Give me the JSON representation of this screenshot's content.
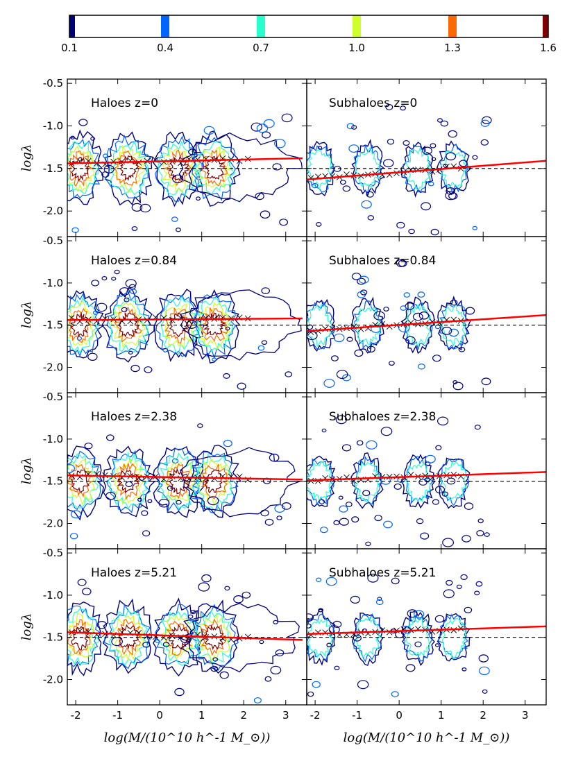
{
  "colorbar": {
    "ticks": [
      "0.1",
      "0.4",
      "0.7",
      "1.0",
      "1.3",
      "1.6"
    ],
    "levels": [
      0.1,
      0.4,
      0.7,
      1.0,
      1.3,
      1.6
    ],
    "colors": [
      "#00007f",
      "#0064ff",
      "#29ffce",
      "#ceff29",
      "#ff6800",
      "#7f0000"
    ]
  },
  "colors": {
    "fit_line": "#ff0000",
    "reference_line": "#000000",
    "median_marker": "#000000"
  },
  "chart_data": [
    {
      "type": "contour",
      "title": "Haloes z=0",
      "xlabel": "log(M/(10^10 h^-1 M_⊙))",
      "ylabel": "logλ",
      "xlim": [
        -2.2,
        3.5
      ],
      "ylim": [
        -2.3,
        -0.45
      ],
      "reference_y": -1.5,
      "fit_line": {
        "x": [
          -2.2,
          3.4
        ],
        "y": [
          -1.44,
          -1.38
        ]
      }
    },
    {
      "type": "contour",
      "title": "Subhaloes z=0",
      "xlabel": "log(M/(10^10 h^-1 M_⊙))",
      "ylabel": "logλ",
      "xlim": [
        -2.2,
        3.5
      ],
      "ylim": [
        -2.3,
        -0.45
      ],
      "reference_y": -1.5,
      "fit_line": {
        "x": [
          -2.2,
          3.5
        ],
        "y": [
          -1.63,
          -1.41
        ]
      }
    },
    {
      "type": "contour",
      "title": "Haloes z=0.84",
      "xlabel": "log(M/(10^10 h^-1 M_⊙))",
      "ylabel": "logλ",
      "xlim": [
        -2.2,
        3.5
      ],
      "ylim": [
        -2.3,
        -0.45
      ],
      "reference_y": -1.5,
      "fit_line": {
        "x": [
          -2.2,
          3.4
        ],
        "y": [
          -1.44,
          -1.42
        ]
      }
    },
    {
      "type": "contour",
      "title": "Subhaloes z=0.84",
      "xlabel": "log(M/(10^10 h^-1 M_⊙))",
      "ylabel": "logλ",
      "xlim": [
        -2.2,
        3.5
      ],
      "ylim": [
        -2.3,
        -0.45
      ],
      "reference_y": -1.5,
      "fit_line": {
        "x": [
          -2.2,
          3.5
        ],
        "y": [
          -1.57,
          -1.38
        ]
      }
    },
    {
      "type": "contour",
      "title": "Haloes z=2.38",
      "xlabel": "log(M/(10^10 h^-1 M_⊙))",
      "ylabel": "logλ",
      "xlim": [
        -2.2,
        3.5
      ],
      "ylim": [
        -2.3,
        -0.45
      ],
      "reference_y": -1.5,
      "fit_line": {
        "x": [
          -2.2,
          3.4
        ],
        "y": [
          -1.43,
          -1.48
        ]
      }
    },
    {
      "type": "contour",
      "title": "Subhaloes z=2.38",
      "xlabel": "log(M/(10^10 h^-1 M_⊙))",
      "ylabel": "logλ",
      "xlim": [
        -2.2,
        3.5
      ],
      "ylim": [
        -2.3,
        -0.45
      ],
      "reference_y": -1.5,
      "fit_line": {
        "x": [
          -2.2,
          3.5
        ],
        "y": [
          -1.49,
          -1.39
        ]
      }
    },
    {
      "type": "contour",
      "title": "Haloes z=5.21",
      "xlabel": "log(M/(10^10 h^-1 M_⊙))",
      "ylabel": "logλ",
      "xlim": [
        -2.2,
        3.5
      ],
      "ylim": [
        -2.3,
        -0.45
      ],
      "reference_y": -1.5,
      "fit_line": {
        "x": [
          -2.2,
          3.4
        ],
        "y": [
          -1.44,
          -1.53
        ]
      }
    },
    {
      "type": "contour",
      "title": "Subhaloes z=5.21",
      "xlabel": "log(M/(10^10 h^-1 M_⊙))",
      "ylabel": "logλ",
      "xlim": [
        -2.2,
        3.5
      ],
      "ylim": [
        -2.3,
        -0.45
      ],
      "reference_y": -1.5,
      "fit_line": {
        "x": [
          -2.2,
          3.5
        ],
        "y": [
          -1.46,
          -1.37
        ]
      }
    }
  ],
  "axes": {
    "xticks": [
      "-2",
      "-1",
      "0",
      "1",
      "2",
      "3"
    ],
    "xtick_values": [
      -2,
      -1,
      0,
      1,
      2,
      3
    ],
    "yticks": [
      "-0.5",
      "-1.0",
      "-1.5",
      "-2.0"
    ],
    "ytick_values": [
      -0.5,
      -1.0,
      -1.5,
      -2.0
    ]
  }
}
